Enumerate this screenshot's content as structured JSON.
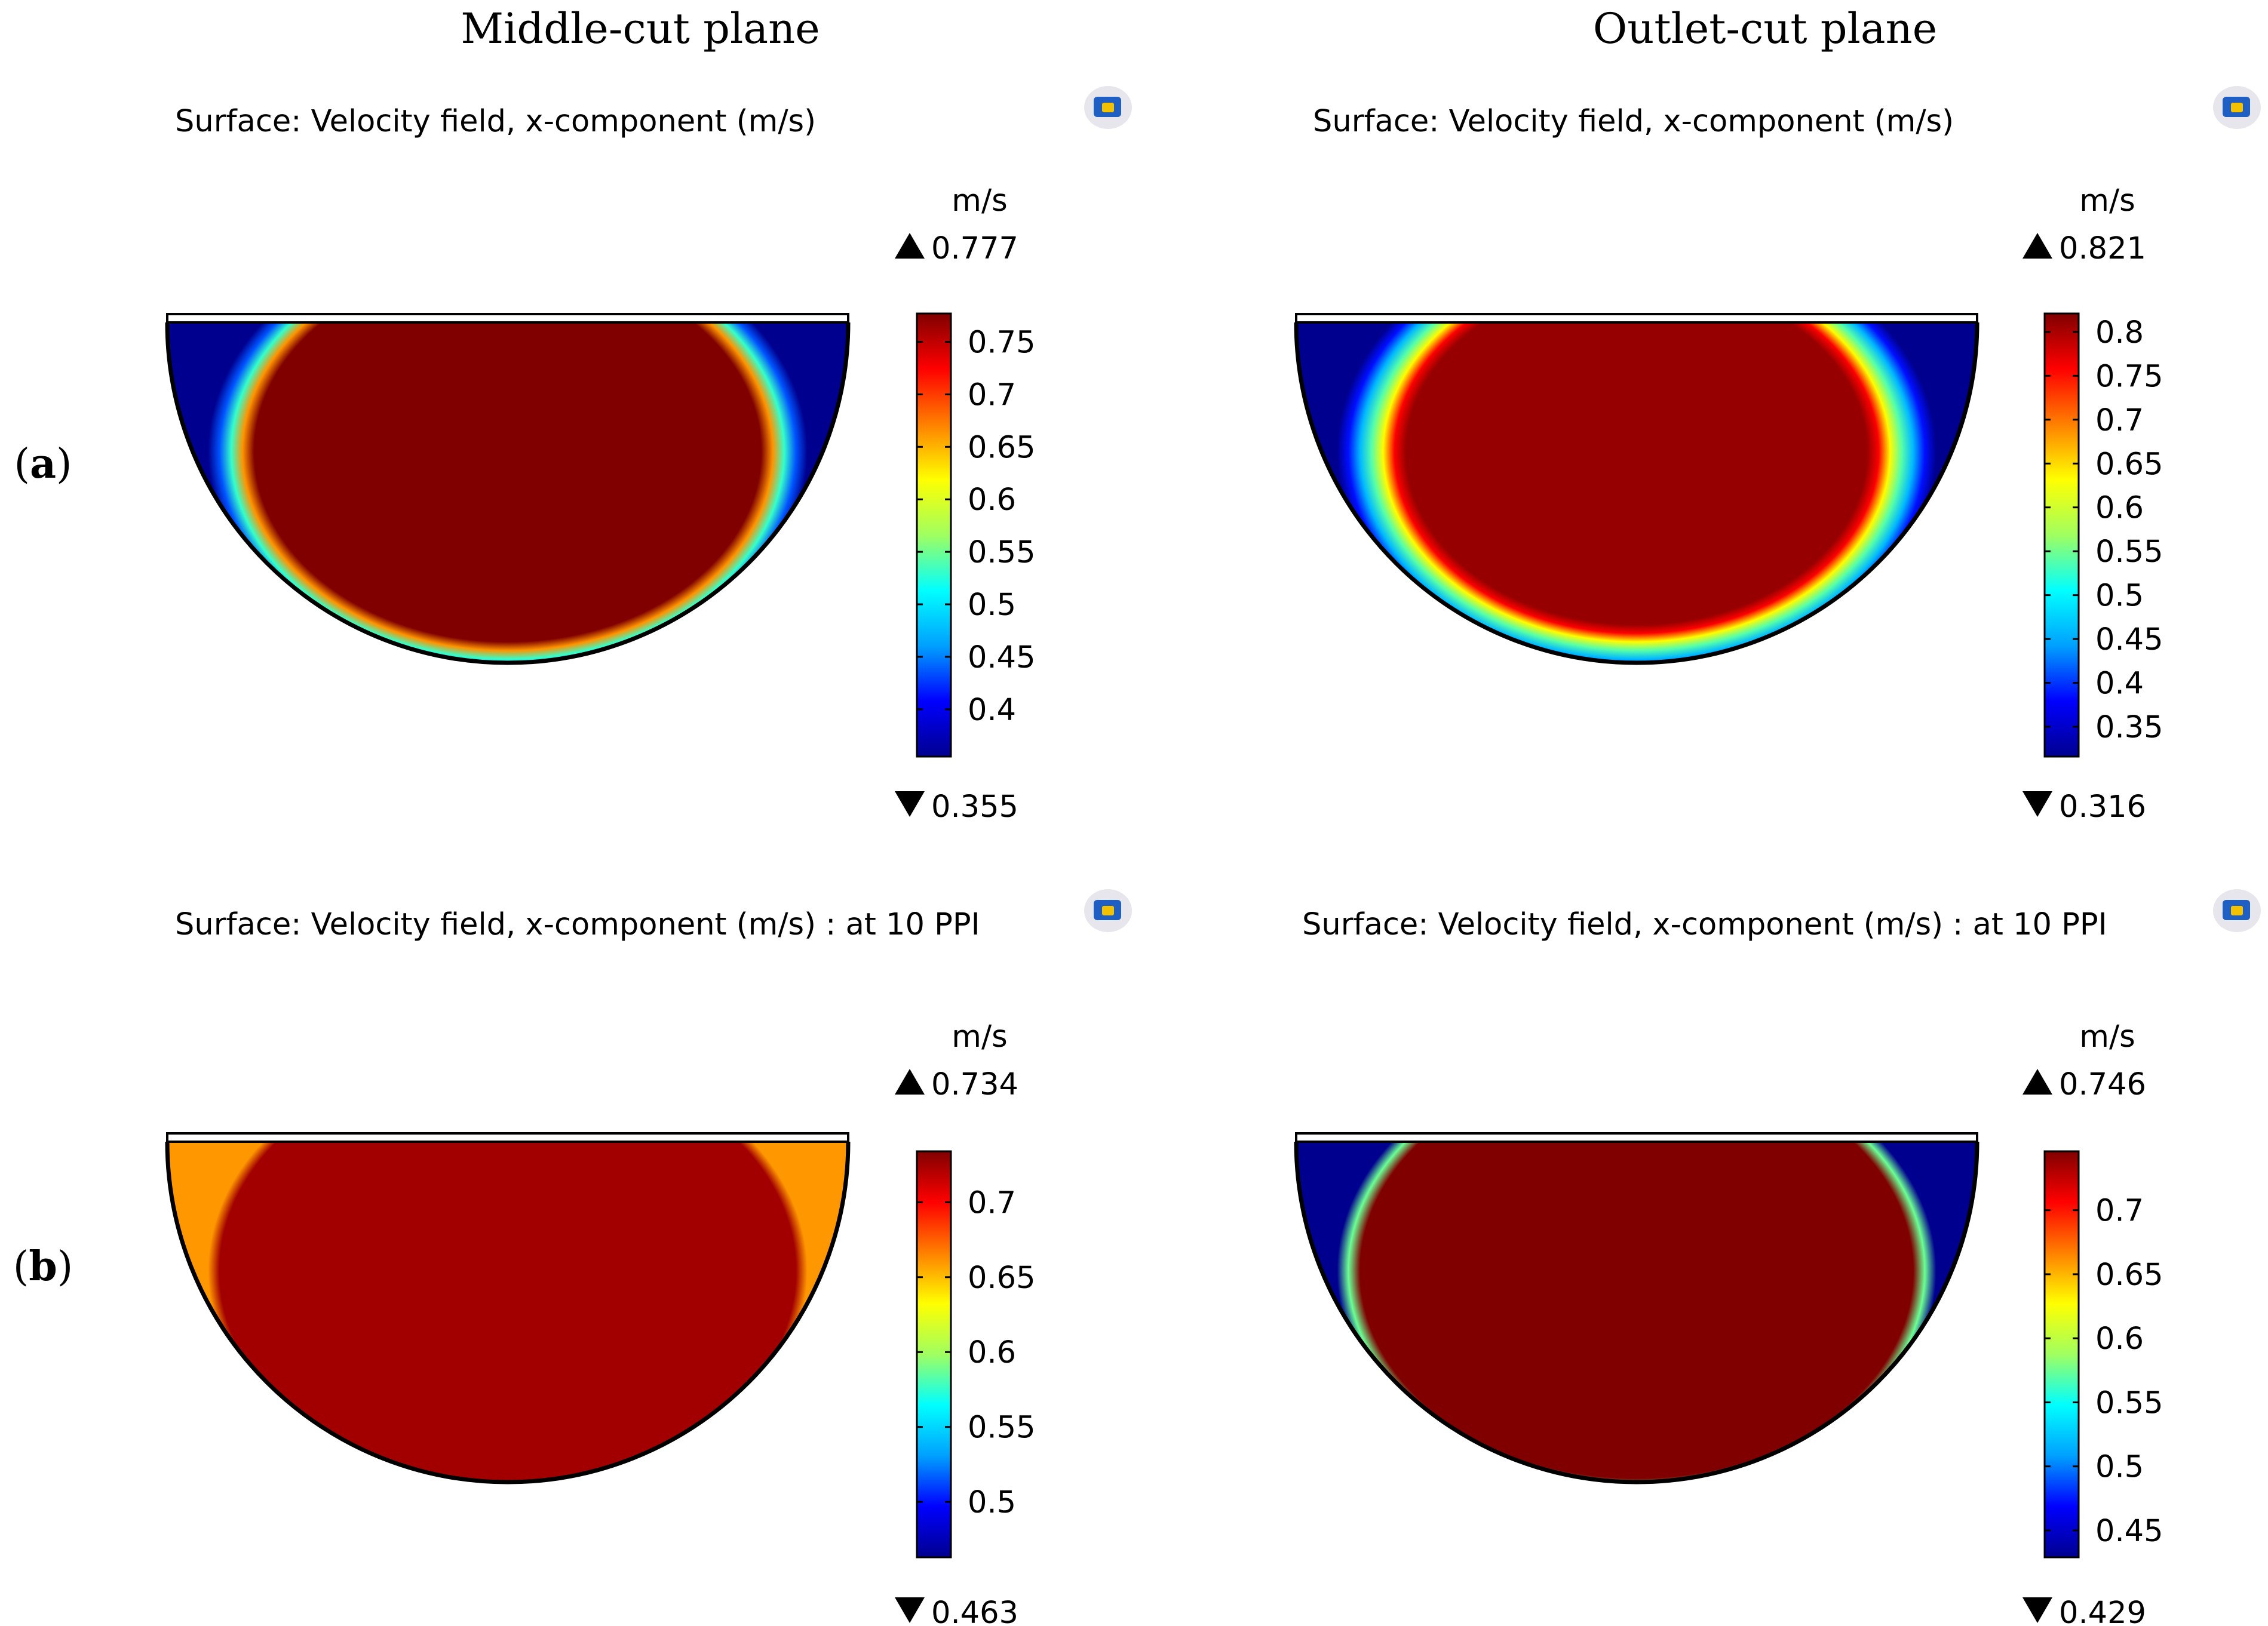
{
  "column_titles": [
    "Middle-cut plane",
    "Outlet-cut plane"
  ],
  "row_labels": [
    "a",
    "b"
  ],
  "colors": {
    "colormap": [
      "#00008f",
      "#0000ff",
      "#00a0ff",
      "#00ffff",
      "#a0ff60",
      "#ffff00",
      "#ff8000",
      "#ff0000",
      "#800000"
    ],
    "outline": "#000000",
    "logo_blue": "#1f5fc4",
    "logo_yellow": "#f2c200"
  },
  "chart_data": [
    {
      "type": "heatmap",
      "panel": "a-middle",
      "title": "Surface: Velocity field, x-component (m/s)",
      "unit": "m/s",
      "max_label": "0.777",
      "min_label": "0.355",
      "range": [
        0.355,
        0.777
      ],
      "ticks": [
        "0.4",
        "0.45",
        "0.5",
        "0.55",
        "0.6",
        "0.65",
        "0.7",
        "0.75"
      ],
      "field": {
        "core": 0.777,
        "wall": 0.355,
        "boundary_layer": 0.13,
        "exponent": 0.6
      }
    },
    {
      "type": "heatmap",
      "panel": "a-outlet",
      "title": "Surface: Velocity field, x-component (m/s)",
      "unit": "m/s",
      "max_label": "0.821",
      "min_label": "0.316",
      "range": [
        0.316,
        0.821
      ],
      "ticks": [
        "0.35",
        "0.4",
        "0.45",
        "0.5",
        "0.55",
        "0.6",
        "0.65",
        "0.7",
        "0.75",
        "0.8"
      ],
      "field": {
        "core": 0.81,
        "wall": 0.316,
        "boundary_layer": 0.2,
        "exponent": 0.7
      }
    },
    {
      "type": "heatmap",
      "panel": "b-middle",
      "title": "Surface: Velocity field, x-component (m/s) : at 10 PPI",
      "unit": "m/s",
      "max_label": "0.734",
      "min_label": "0.463",
      "range": [
        0.463,
        0.734
      ],
      "ticks": [
        "0.5",
        "0.55",
        "0.6",
        "0.65",
        "0.7"
      ],
      "field": {
        "core": 0.725,
        "wall": 0.66,
        "boundary_layer": 0.015,
        "exponent": 1.0
      }
    },
    {
      "type": "heatmap",
      "panel": "b-outlet",
      "title": "Surface: Velocity field, x-component (m/s) : at 10 PPI",
      "unit": "m/s",
      "max_label": "0.746",
      "min_label": "0.429",
      "range": [
        0.429,
        0.746
      ],
      "ticks": [
        "0.45",
        "0.5",
        "0.55",
        "0.6",
        "0.65",
        "0.7"
      ],
      "field": {
        "core": 0.746,
        "wall": 0.429,
        "boundary_layer": 0.06,
        "exponent": 0.6
      }
    }
  ]
}
